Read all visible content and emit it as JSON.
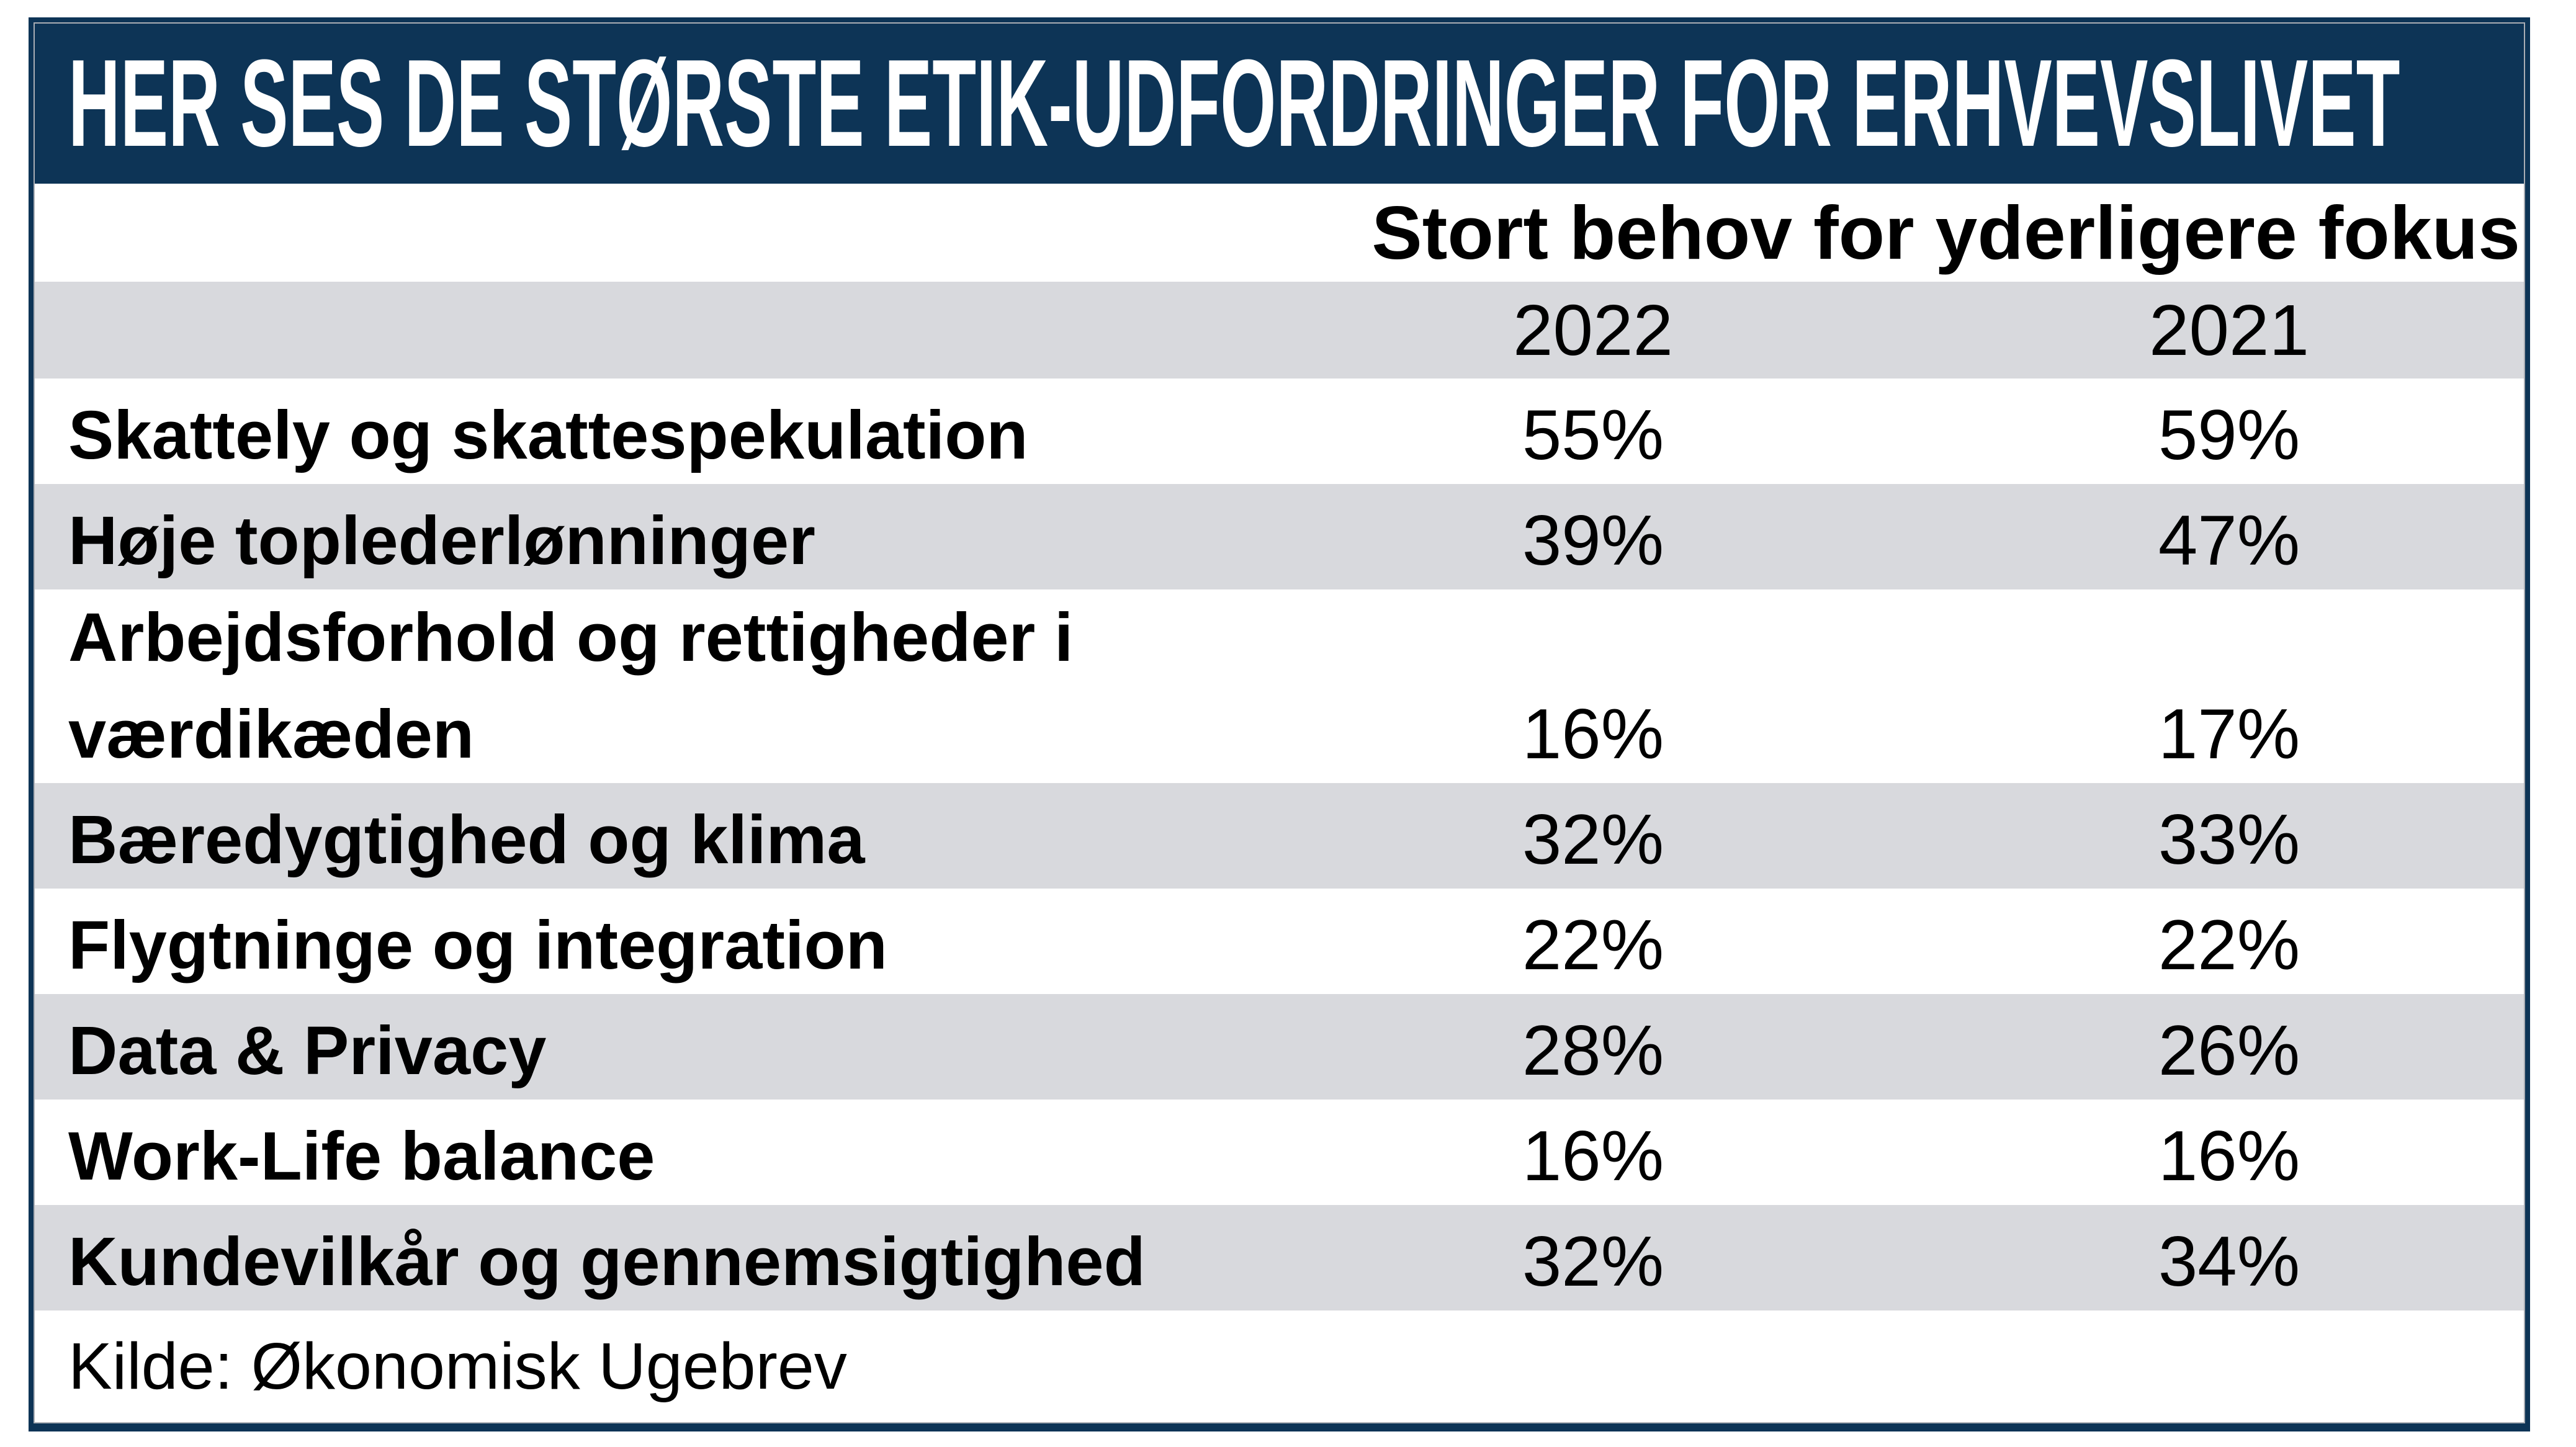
{
  "title": "HER SES DE STØRSTE ETIK-UDFORDRINGER FOR ERHVEVSLIVET",
  "subtitle": "Stort behov for yderligere fokus",
  "col_2022": "2022",
  "col_2021": "2021",
  "source": "Kilde: Økonomisk Ugebrev",
  "rows": [
    {
      "label": "Skattely og skattespekulation",
      "v2022": "55%",
      "v2021": "59%"
    },
    {
      "label": "Høje toplederlønninger",
      "v2022": "39%",
      "v2021": "47%"
    },
    {
      "label": "Arbejdsforhold og rettigheder i værdikæden",
      "v2022": "16%",
      "v2021": "17%"
    },
    {
      "label": "Bæredygtighed og klima",
      "v2022": "32%",
      "v2021": "33%"
    },
    {
      "label": "Flygtninge og integration",
      "v2022": "22%",
      "v2021": "22%"
    },
    {
      "label": "Data & Privacy",
      "v2022": "28%",
      "v2021": "26%"
    },
    {
      "label": "Work-Life balance",
      "v2022": "16%",
      "v2021": "16%"
    },
    {
      "label": "Kundevilkår og gennemsigtighed",
      "v2022": "32%",
      "v2021": "34%"
    }
  ],
  "colors": {
    "navy": "#0d3456",
    "stripe_gray": "#d8d9dd",
    "hairline_gray": "#a9adb4",
    "title_text": "#ffffff",
    "body_text": "#000000"
  },
  "chart_data": {
    "type": "table",
    "title": "HER SES DE STØRSTE ETIK-UDFORDRINGER FOR ERHVEVSLIVET",
    "subtitle": "Stort behov for yderligere fokus",
    "columns": [
      "2022",
      "2021"
    ],
    "categories": [
      "Skattely og skattespekulation",
      "Høje toplederlønninger",
      "Arbejdsforhold og rettigheder i værdikæden",
      "Bæredygtighed og klima",
      "Flygtninge og integration",
      "Data & Privacy",
      "Work-Life balance",
      "Kundevilkår og gennemsigtighed"
    ],
    "series": [
      {
        "name": "2022",
        "values": [
          55,
          39,
          16,
          32,
          22,
          28,
          16,
          32
        ]
      },
      {
        "name": "2021",
        "values": [
          59,
          47,
          17,
          33,
          22,
          26,
          16,
          34
        ]
      }
    ],
    "unit": "%",
    "source": "Kilde: Økonomisk Ugebrev"
  }
}
